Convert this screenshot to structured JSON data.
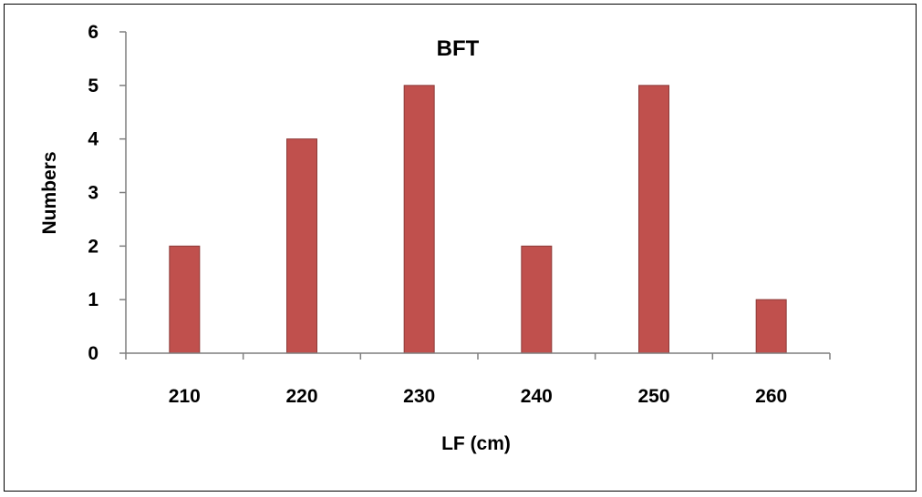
{
  "chart_data": {
    "type": "bar",
    "title": "BFT",
    "xlabel": "LF (cm)",
    "ylabel": "Numbers",
    "categories": [
      "210",
      "220",
      "230",
      "240",
      "250",
      "260"
    ],
    "values": [
      2,
      4,
      5,
      2,
      5,
      1
    ],
    "ylim": [
      0,
      6
    ],
    "yticks": [
      "0",
      "1",
      "2",
      "3",
      "4",
      "5",
      "6"
    ],
    "grid": false,
    "legend": "none",
    "bar_color": "#c0504d"
  }
}
